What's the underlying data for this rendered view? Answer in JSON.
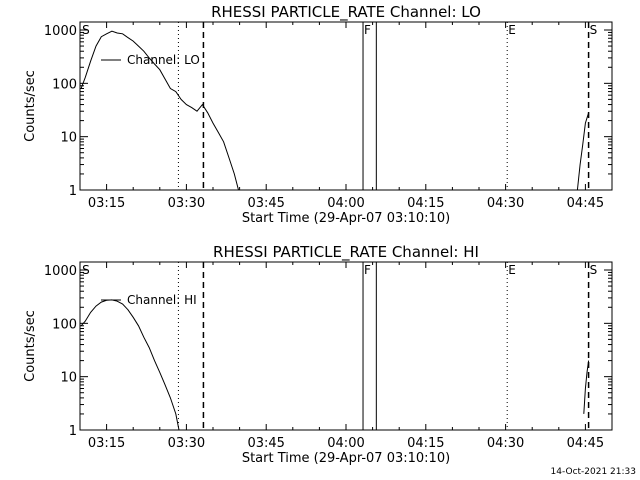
{
  "footer": {
    "timestamp": "14-Oct-2021 21:33"
  },
  "chart_data": [
    {
      "type": "line",
      "title": "RHESSI PARTICLE_RATE Channel: LO",
      "xlabel": "Start Time (29-Apr-07 03:10:10)",
      "ylabel": "Counts/sec",
      "y_scale": "log",
      "ylim": [
        1,
        1000
      ],
      "xlim_minutes": [
        190,
        290
      ],
      "x_ticks": [
        {
          "label": "03:15",
          "t": 195
        },
        {
          "label": "03:30",
          "t": 210
        },
        {
          "label": "03:45",
          "t": 225
        },
        {
          "label": "04:00",
          "t": 240
        },
        {
          "label": "04:15",
          "t": 255
        },
        {
          "label": "04:30",
          "t": 270
        },
        {
          "label": "04:45",
          "t": 285
        }
      ],
      "y_ticks": [
        {
          "label": "1",
          "v": 1
        },
        {
          "label": "10",
          "v": 10
        },
        {
          "label": "100",
          "v": 100
        },
        {
          "label": "1000",
          "v": 1000
        }
      ],
      "legend": {
        "label": "Channel: LO",
        "placement": "top-left"
      },
      "markers": [
        {
          "label": "S",
          "t": 190.2,
          "style": "none"
        },
        {
          "label": "",
          "t": 208.5,
          "style": "dotted"
        },
        {
          "label": "",
          "t": 213.2,
          "style": "dashed"
        },
        {
          "label": "F",
          "t": 243.2,
          "style": "solid"
        },
        {
          "label": "",
          "t": 245.7,
          "style": "solid"
        },
        {
          "label": "E",
          "t": 270.3,
          "style": "dotted"
        },
        {
          "label": "S",
          "t": 285.6,
          "style": "dashed"
        }
      ],
      "series": [
        {
          "segments": [
            [
              [
                190.2,
                80
              ],
              [
                191,
                130
              ],
              [
                192,
                260
              ],
              [
                193,
                500
              ],
              [
                194,
                750
              ],
              [
                195,
                850
              ],
              [
                196,
                950
              ],
              [
                197,
                880
              ],
              [
                198,
                850
              ],
              [
                199,
                720
              ],
              [
                200,
                620
              ],
              [
                201,
                500
              ],
              [
                202,
                400
              ],
              [
                203,
                300
              ],
              [
                204,
                230
              ],
              [
                205,
                180
              ],
              [
                206,
                120
              ],
              [
                207,
                80
              ],
              [
                208,
                70
              ],
              [
                209,
                50
              ],
              [
                210,
                40
              ],
              [
                211,
                35
              ],
              [
                212,
                30
              ],
              [
                213,
                40
              ],
              [
                214,
                28
              ],
              [
                215,
                18
              ],
              [
                216,
                12
              ],
              [
                217,
                8
              ],
              [
                218,
                4
              ],
              [
                219,
                2
              ],
              [
                219.8,
                1
              ]
            ],
            [
              [
                283.5,
                1
              ],
              [
                284,
                3
              ],
              [
                284.5,
                7
              ],
              [
                285,
                18
              ],
              [
                285.6,
                28
              ]
            ]
          ]
        }
      ]
    },
    {
      "type": "line",
      "title": "RHESSI PARTICLE_RATE Channel: HI",
      "xlabel": "Start Time (29-Apr-07 03:10:10)",
      "ylabel": "Counts/sec",
      "y_scale": "log",
      "ylim": [
        1,
        1000
      ],
      "xlim_minutes": [
        190,
        290
      ],
      "x_ticks": [
        {
          "label": "03:15",
          "t": 195
        },
        {
          "label": "03:30",
          "t": 210
        },
        {
          "label": "03:45",
          "t": 225
        },
        {
          "label": "04:00",
          "t": 240
        },
        {
          "label": "04:15",
          "t": 255
        },
        {
          "label": "04:30",
          "t": 270
        },
        {
          "label": "04:45",
          "t": 285
        }
      ],
      "y_ticks": [
        {
          "label": "1",
          "v": 1
        },
        {
          "label": "10",
          "v": 10
        },
        {
          "label": "100",
          "v": 100
        },
        {
          "label": "1000",
          "v": 1000
        }
      ],
      "legend": {
        "label": "Channel: HI",
        "placement": "top-left"
      },
      "markers": [
        {
          "label": "S",
          "t": 190.2,
          "style": "none"
        },
        {
          "label": "",
          "t": 208.5,
          "style": "dotted"
        },
        {
          "label": "",
          "t": 213.2,
          "style": "dashed"
        },
        {
          "label": "F",
          "t": 243.2,
          "style": "solid"
        },
        {
          "label": "",
          "t": 245.7,
          "style": "solid"
        },
        {
          "label": "E",
          "t": 270.3,
          "style": "dotted"
        },
        {
          "label": "S",
          "t": 285.6,
          "style": "dashed"
        }
      ],
      "series": [
        {
          "segments": [
            [
              [
                190.2,
                90
              ],
              [
                191,
                110
              ],
              [
                192,
                160
              ],
              [
                193,
                210
              ],
              [
                194,
                250
              ],
              [
                195,
                270
              ],
              [
                196,
                275
              ],
              [
                197,
                260
              ],
              [
                198,
                230
              ],
              [
                199,
                180
              ],
              [
                200,
                130
              ],
              [
                201,
                90
              ],
              [
                202,
                55
              ],
              [
                203,
                35
              ],
              [
                204,
                20
              ],
              [
                205,
                12
              ],
              [
                206,
                7
              ],
              [
                207,
                4
              ],
              [
                208,
                2
              ],
              [
                208.6,
                1
              ]
            ],
            [
              [
                284.7,
                2
              ],
              [
                285,
                6
              ],
              [
                285.3,
                12
              ],
              [
                285.6,
                20
              ]
            ]
          ]
        }
      ]
    }
  ]
}
